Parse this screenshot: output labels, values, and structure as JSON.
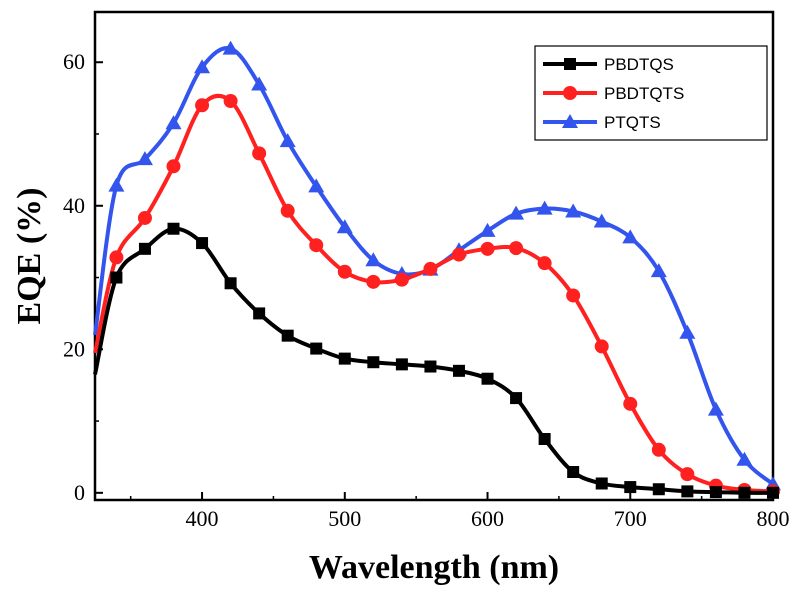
{
  "chart_data": {
    "type": "line",
    "xlabel": "Wavelength (nm)",
    "ylabel": "EQE (%)",
    "xlim": [
      325,
      800
    ],
    "ylim": [
      -1,
      67
    ],
    "x_ticks": [
      400,
      500,
      600,
      700,
      800
    ],
    "y_ticks": [
      0,
      20,
      40,
      60
    ],
    "grid": false,
    "legend_position": "top-right",
    "series": [
      {
        "name": "PBDTQS",
        "color": "#000000",
        "marker": "square",
        "x": [
          340,
          360,
          380,
          400,
          420,
          440,
          460,
          480,
          500,
          520,
          540,
          560,
          580,
          600,
          620,
          640,
          660,
          680,
          700,
          720,
          740,
          760,
          780,
          800
        ],
        "y": [
          30,
          34,
          36.8,
          34.8,
          29.2,
          25.0,
          21.9,
          20.1,
          18.7,
          18.2,
          17.9,
          17.6,
          17.0,
          15.9,
          13.2,
          7.5,
          2.9,
          1.3,
          0.8,
          0.5,
          0.2,
          0.1,
          0.0,
          0.0
        ],
        "curve_start": 16.5,
        "curve_end": 0.0
      },
      {
        "name": "PBDTQTS",
        "color": "#ff2020",
        "marker": "circle",
        "x": [
          340,
          360,
          380,
          400,
          420,
          440,
          460,
          480,
          500,
          520,
          540,
          560,
          580,
          600,
          620,
          640,
          660,
          680,
          700,
          720,
          740,
          760,
          780,
          800
        ],
        "y": [
          32.8,
          38.3,
          45.5,
          54.0,
          54.6,
          47.3,
          39.3,
          34.5,
          30.8,
          29.4,
          29.7,
          31.2,
          33.2,
          34.0,
          34.1,
          32.0,
          27.5,
          20.4,
          12.4,
          6.0,
          2.6,
          1.0,
          0.4,
          0.2
        ],
        "curve_start": 19.5,
        "curve_end": 0.0
      },
      {
        "name": "PTQTS",
        "color": "#3355ee",
        "marker": "triangle",
        "x": [
          340,
          360,
          380,
          400,
          420,
          440,
          460,
          480,
          500,
          520,
          540,
          560,
          580,
          600,
          620,
          640,
          660,
          680,
          700,
          720,
          740,
          760,
          780,
          800
        ],
        "y": [
          42.8,
          46.5,
          51.5,
          59.3,
          61.9,
          56.9,
          49.0,
          42.7,
          37.0,
          32.4,
          30.5,
          31.1,
          33.8,
          36.5,
          38.9,
          39.6,
          39.2,
          37.8,
          35.6,
          30.9,
          22.3,
          11.6,
          4.6,
          1.2
        ],
        "curve_start": 22.0,
        "curve_end": 0.8
      }
    ]
  }
}
